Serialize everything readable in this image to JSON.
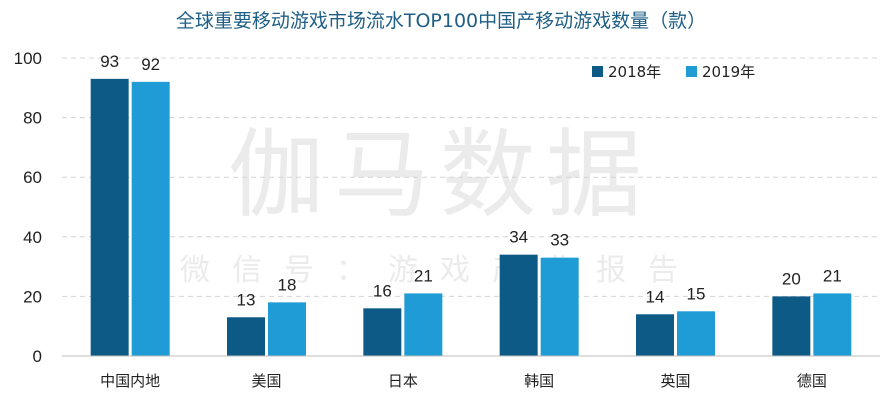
{
  "chart_data": {
    "type": "bar",
    "title": "全球重要移动游戏市场流水TOP100中国产移动游戏数量（款）",
    "categories": [
      "中国内地",
      "美国",
      "日本",
      "韩国",
      "英国",
      "德国"
    ],
    "series": [
      {
        "name": "2018年",
        "values": [
          93,
          13,
          16,
          34,
          14,
          20
        ],
        "color": "#0d5a86"
      },
      {
        "name": "2019年",
        "values": [
          92,
          18,
          21,
          33,
          15,
          21
        ],
        "color": "#1f9bd5"
      }
    ],
    "yticks": [
      0,
      20,
      40,
      60,
      80,
      100
    ],
    "ylim": [
      0,
      100
    ],
    "grid": true,
    "legend_position": "top-right"
  },
  "watermark": {
    "brand": "伽马数据",
    "subtitle": "微信号：游戏产业报告"
  }
}
